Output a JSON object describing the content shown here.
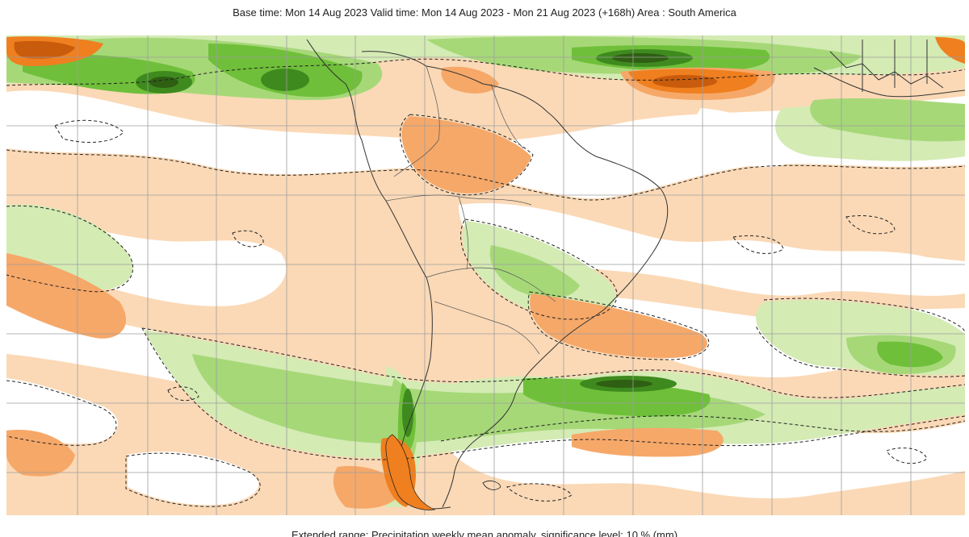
{
  "header": {
    "title": "Base time: Mon 14 Aug 2023 Valid time: Mon 14 Aug 2023 - Mon 21 Aug 2023 (+168h) Area : South America"
  },
  "footer": {
    "caption": "Extended range: Precipitation weekly mean anomaly, significance level: 10 % (mm)"
  },
  "map": {
    "area": "South America",
    "colors": {
      "ocean_dry_light": "#fbd9b6",
      "dry_medium": "#f6a869",
      "dry_strong": "#ef7f1f",
      "dry_very_strong": "#c85b0c",
      "neutral": "#ffffff",
      "wet_light": "#d4ebb4",
      "wet_medium": "#a6d878",
      "wet_strong": "#6fbf3a",
      "wet_very_strong": "#3f8a1e",
      "wet_extreme": "#2e5f12",
      "coastline": "#333333",
      "gridline": "#9e9e9e",
      "significance_contour": "#222222"
    }
  }
}
